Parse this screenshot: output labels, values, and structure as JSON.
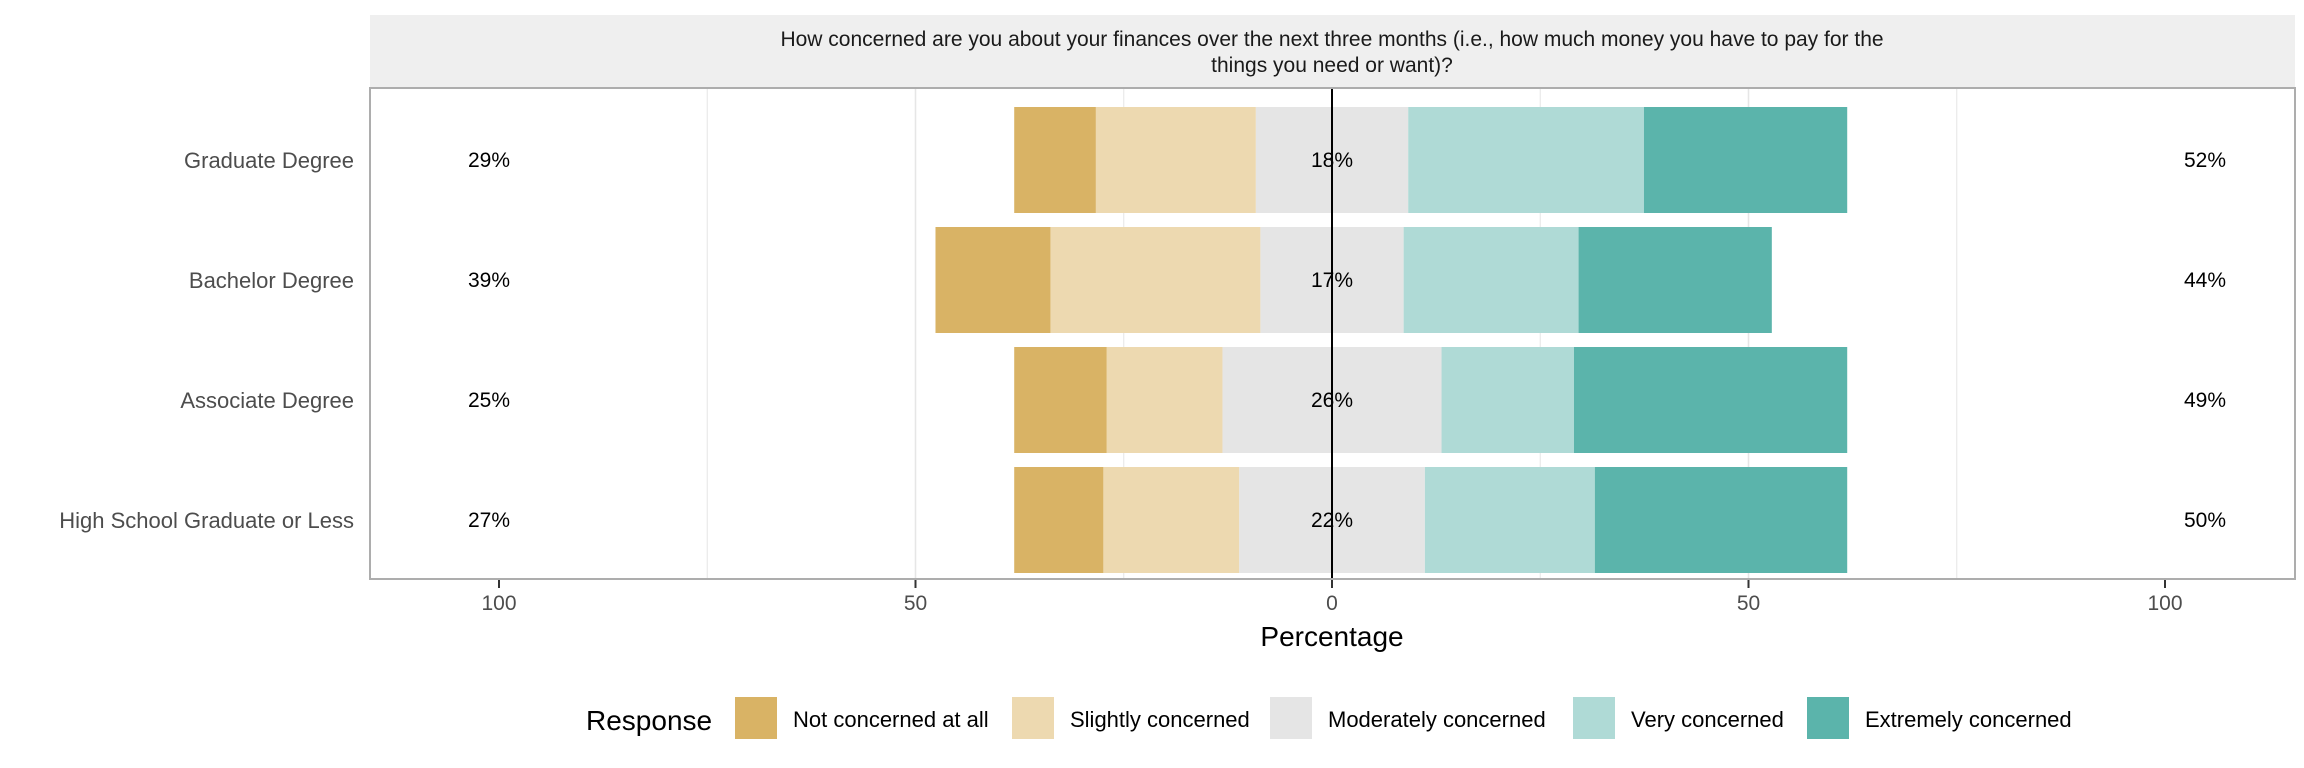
{
  "chart_data": {
    "type": "bar",
    "orientation": "horizontal",
    "stacked": "diverging",
    "title": "How concerned are you about your finances over the next three months (i.e., how much money you have to pay for the things you need or want)?",
    "title_lines": [
      "How concerned are you about your finances over the next three months (i.e., how much money you have to pay for the",
      "things you need or want)?"
    ],
    "xlabel": "Percentage",
    "ylabel": "",
    "xlim": [
      -100,
      100
    ],
    "xticks": [
      -100,
      -50,
      0,
      50,
      100
    ],
    "xtick_labels": [
      "100",
      "50",
      "0",
      "50",
      "100"
    ],
    "grid": true,
    "legend": {
      "title": "Response",
      "placement": "bottom"
    },
    "categories": [
      "Graduate Degree",
      "Bachelor Degree",
      "Associate Degree",
      "High School Graduate or Less"
    ],
    "series": [
      {
        "name": "Not concerned at all",
        "color": "#D9B365",
        "values": [
          9.8,
          13.8,
          11.1,
          10.7
        ]
      },
      {
        "name": "Slightly concerned",
        "color": "#EDD9B0",
        "values": [
          19.2,
          25.2,
          13.9,
          16.3
        ]
      },
      {
        "name": "Moderately concerned",
        "color": "#E5E5E5",
        "values": [
          18.3,
          17.2,
          26.3,
          22.3
        ]
      },
      {
        "name": "Very concerned",
        "color": "#AFDAD6",
        "values": [
          28.3,
          21.0,
          15.9,
          20.4
        ]
      },
      {
        "name": "Extremely concerned",
        "color": "#5BB4AB",
        "values": [
          24.4,
          23.2,
          32.8,
          30.3
        ]
      }
    ],
    "label_left": [
      "29%",
      "39%",
      "25%",
      "27%"
    ],
    "label_center": [
      "18%",
      "17%",
      "26%",
      "22%"
    ],
    "label_right": [
      "52%",
      "44%",
      "49%",
      "50%"
    ],
    "colors": {
      "strip_bg": "#EFEFEF",
      "panel_border": "#ADADAD",
      "grid": "#E6E6E6",
      "axis_text": "#4D4D4D"
    }
  }
}
